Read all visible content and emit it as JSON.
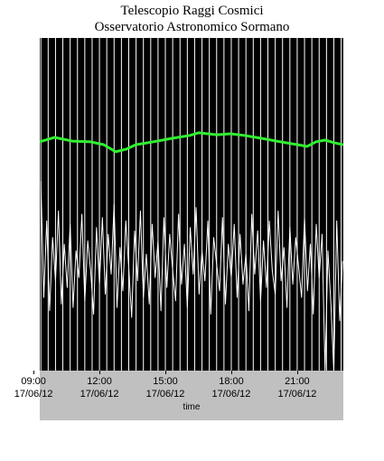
{
  "chart_data": {
    "type": "line",
    "title": "Telescopio Raggi Cosmici",
    "subtitle": "Osservatorio Astronomico Sormano",
    "x_label": "time",
    "x": [
      560,
      568,
      576,
      584,
      592,
      600,
      608,
      616,
      624,
      632,
      640,
      648,
      656,
      664,
      672,
      680,
      688,
      696,
      704,
      712,
      720,
      728,
      736,
      744,
      752,
      760,
      768,
      776,
      784,
      792,
      800,
      808,
      816,
      824,
      832,
      840,
      848,
      856,
      864,
      872,
      880,
      888,
      896,
      904,
      912,
      920,
      928,
      936,
      944,
      952,
      960,
      968,
      976,
      984,
      992,
      1000,
      1008,
      1016,
      1024,
      1032,
      1040,
      1048,
      1056,
      1064,
      1072,
      1080,
      1088,
      1096,
      1104,
      1112,
      1120,
      1128,
      1136,
      1144,
      1152,
      1160,
      1168,
      1176,
      1184,
      1192,
      1200,
      1208,
      1216,
      1224,
      1232,
      1240,
      1248,
      1256,
      1264,
      1272,
      1280,
      1288,
      1296,
      1304,
      1312,
      1320,
      1328,
      1336,
      1344,
      1352,
      1360,
      1368,
      1376,
      1384
    ],
    "series": [
      {
        "color": "#ffffff",
        "values": [
          57,
          22,
          45,
          18,
          40,
          27,
          48,
          20,
          38,
          25,
          44,
          19,
          36,
          28,
          47,
          21,
          39,
          30,
          17,
          43,
          26,
          46,
          23,
          41,
          29,
          50,
          19,
          37,
          24,
          45,
          31,
          16,
          42,
          27,
          48,
          22,
          35,
          20,
          44,
          28,
          39,
          18,
          46,
          25,
          41,
          30,
          21,
          47,
          26,
          38,
          19,
          43,
          29,
          49,
          23,
          36,
          27,
          45,
          17,
          40,
          32,
          24,
          46,
          20,
          38,
          28,
          44,
          22,
          41,
          26,
          35,
          18,
          47,
          29,
          42,
          21,
          39,
          25,
          45,
          30,
          23,
          48,
          27,
          37,
          19,
          43,
          26,
          40,
          31,
          22,
          46,
          24,
          38,
          17,
          44,
          28,
          41,
          0,
          36,
          20,
          0,
          45,
          15,
          33
        ]
      },
      {
        "color": "#33ee33",
        "x": [
          557,
          597,
          646,
          695,
          732,
          764,
          794,
          819,
          868,
          917,
          967,
          991,
          1041,
          1078,
          1115,
          1164,
          1213,
          1262,
          1287,
          1312,
          1336,
          1361,
          1386
        ],
        "values": [
          68.8,
          70.1,
          69.0,
          68.8,
          67.9,
          65.8,
          66.6,
          67.9,
          68.8,
          69.8,
          70.7,
          71.5,
          70.9,
          71.2,
          70.7,
          69.8,
          68.8,
          67.9,
          67.4,
          68.8,
          69.3,
          68.5,
          67.9
        ]
      }
    ],
    "xlim": [
      557,
      1386
    ],
    "ylim": [
      0,
      100
    ],
    "xticks": [
      {
        "value": 540,
        "label": "09:00\n17/06/12"
      },
      {
        "value": 720,
        "label": "12:00\n17/06/12"
      },
      {
        "value": 900,
        "label": "15:00\n17/06/12"
      },
      {
        "value": 1080,
        "label": "18:00\n17/06/12"
      },
      {
        "value": 1260,
        "label": "21:00\n17/06/12"
      }
    ],
    "xgrid": [
      560,
      580,
      600,
      620,
      640,
      660,
      680,
      700,
      720,
      740,
      760,
      780,
      800,
      820,
      840,
      860,
      880,
      900,
      920,
      940,
      960,
      980,
      1000,
      1020,
      1040,
      1060,
      1080,
      1100,
      1120,
      1140,
      1160,
      1180,
      1200,
      1220,
      1240,
      1260,
      1280,
      1300,
      1320,
      1340,
      1360,
      1380
    ],
    "background": "#000000"
  }
}
